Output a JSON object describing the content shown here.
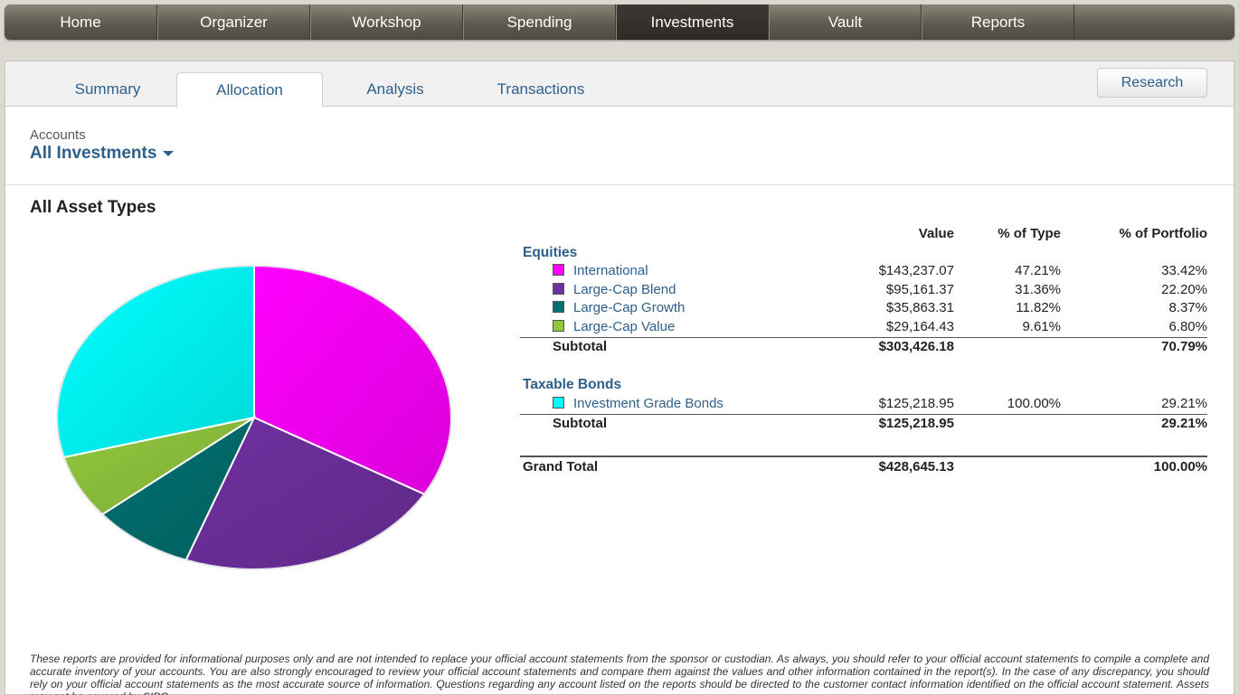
{
  "nav": {
    "items": [
      "Home",
      "Organizer",
      "Workshop",
      "Spending",
      "Investments",
      "Vault",
      "Reports"
    ],
    "active": "Investments"
  },
  "tabs": {
    "items": [
      "Summary",
      "Allocation",
      "Analysis",
      "Transactions"
    ],
    "active": "Allocation",
    "research_label": "Research"
  },
  "accounts": {
    "label": "Accounts",
    "selected": "All Investments"
  },
  "section_title": "All Asset Types",
  "table": {
    "headers": {
      "value": "Value",
      "pct_type": "% of Type",
      "pct_portfolio": "% of Portfolio"
    },
    "groups": [
      {
        "title": "Equities",
        "rows": [
          {
            "name": "International",
            "value": "$143,237.07",
            "pct_type": "47.21%",
            "pct_portfolio": "33.42%",
            "color": "#ff00ff"
          },
          {
            "name": "Large-Cap Blend",
            "value": "$95,161.37",
            "pct_type": "31.36%",
            "pct_portfolio": "22.20%",
            "color": "#7030a0"
          },
          {
            "name": "Large-Cap Growth",
            "value": "$35,863.31",
            "pct_type": "11.82%",
            "pct_portfolio": "8.37%",
            "color": "#007070"
          },
          {
            "name": "Large-Cap Value",
            "value": "$29,164.43",
            "pct_type": "9.61%",
            "pct_portfolio": "6.80%",
            "color": "#92c83e"
          }
        ],
        "subtotal_label": "Subtotal",
        "subtotal_value": "$303,426.18",
        "subtotal_pct": "70.79%"
      },
      {
        "title": "Taxable Bonds",
        "rows": [
          {
            "name": "Investment Grade Bonds",
            "value": "$125,218.95",
            "pct_type": "100.00%",
            "pct_portfolio": "29.21%",
            "color": "#00ffff"
          }
        ],
        "subtotal_label": "Subtotal",
        "subtotal_value": "$125,218.95",
        "subtotal_pct": "29.21%"
      }
    ],
    "grand_total_label": "Grand Total",
    "grand_total_value": "$428,645.13",
    "grand_total_pct": "100.00%"
  },
  "chart_data": {
    "type": "pie",
    "categories": [
      "International",
      "Large-Cap Blend",
      "Large-Cap Growth",
      "Large-Cap Value",
      "Investment Grade Bonds"
    ],
    "values": [
      33.42,
      22.2,
      8.37,
      6.8,
      29.21
    ],
    "colors": [
      "#ff00ff",
      "#7030a0",
      "#007070",
      "#92c83e",
      "#00ffff"
    ],
    "title": "",
    "legend": "none"
  },
  "disclaimer": "These reports are provided for informational purposes only and are not intended to replace your official account statements from the sponsor or custodian. As always, you should refer to your official account statements to compile a complete and accurate inventory of your accounts. You are also strongly encouraged to review your official account statements and compare them against the values and other information contained in the report(s). In the case of any discrepancy, you should rely on your official account statements as the most accurate source of information. Questions regarding any account listed on the reports should be directed to the customer contact information identified on the official account statement. Assets may not be covered by SIPC."
}
